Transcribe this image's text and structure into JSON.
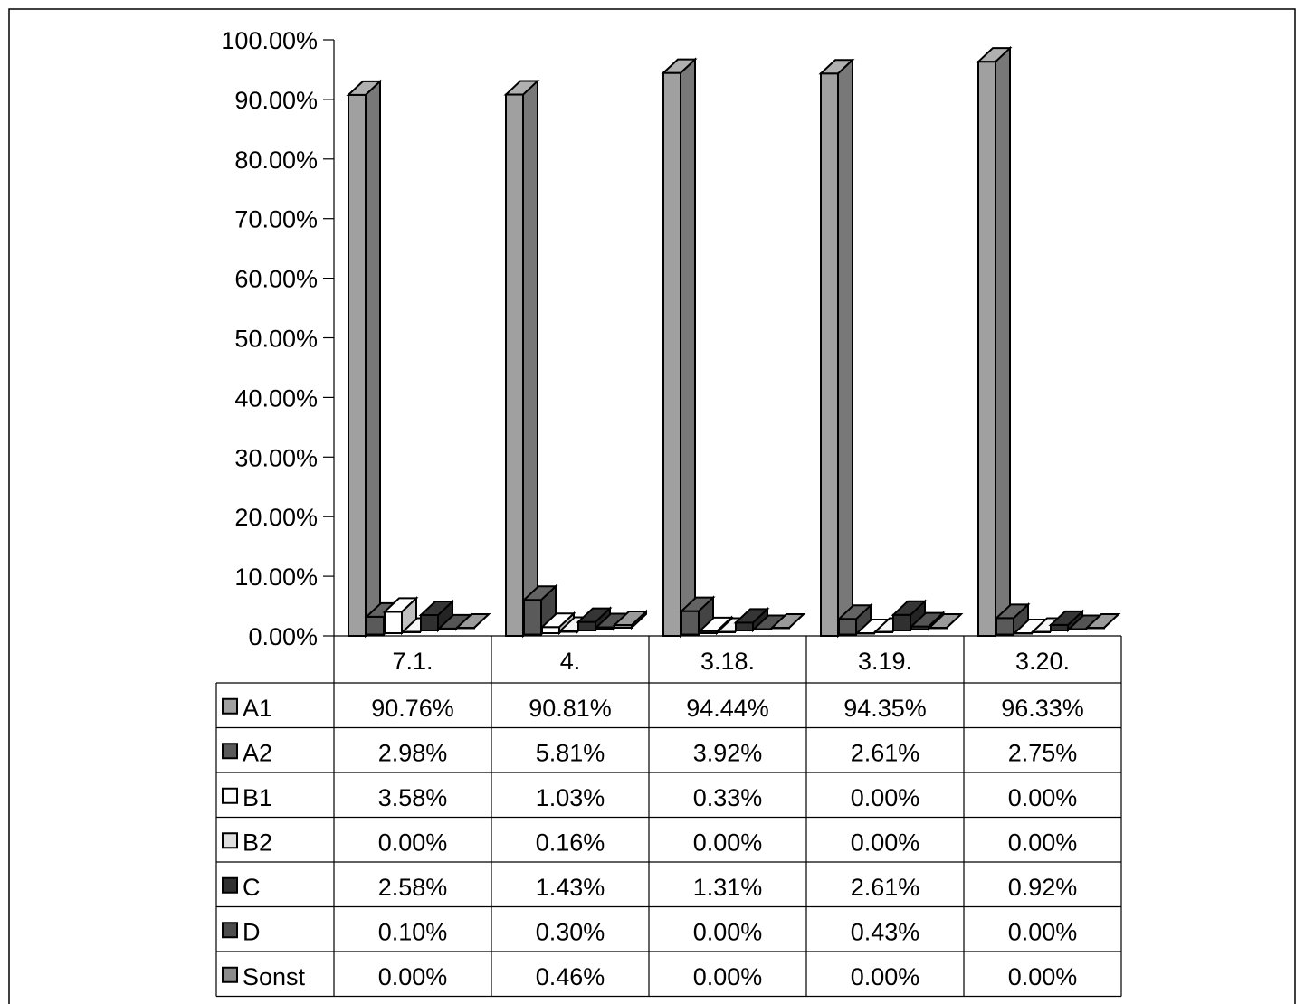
{
  "chart_data": {
    "type": "bar",
    "categories": [
      "7.1.",
      "4.",
      "3.18.",
      "3.19.",
      "3.20."
    ],
    "y_ticks": [
      "0.00%",
      "10.00%",
      "20.00%",
      "30.00%",
      "40.00%",
      "50.00%",
      "60.00%",
      "70.00%",
      "80.00%",
      "90.00%",
      "100.00%"
    ],
    "ylim": [
      0,
      100
    ],
    "legend": "data-table",
    "series": [
      {
        "name": "A1",
        "color": "#a0a0a0",
        "values": [
          90.76,
          90.81,
          94.44,
          94.35,
          96.33
        ],
        "labels": [
          "90.76%",
          "90.81%",
          "94.44%",
          "94.35%",
          "96.33%"
        ]
      },
      {
        "name": "A2",
        "color": "#5a5a5a",
        "values": [
          2.98,
          5.81,
          3.92,
          2.61,
          2.75
        ],
        "labels": [
          "2.98%",
          "5.81%",
          "3.92%",
          "2.61%",
          "2.75%"
        ]
      },
      {
        "name": "B1",
        "color": "#ffffff",
        "values": [
          3.58,
          1.03,
          0.33,
          0.0,
          0.0
        ],
        "labels": [
          "3.58%",
          "1.03%",
          "0.33%",
          "0.00%",
          "0.00%"
        ]
      },
      {
        "name": "B2",
        "color": "#e0e0e0",
        "values": [
          0.0,
          0.16,
          0.0,
          0.0,
          0.0
        ],
        "labels": [
          "0.00%",
          "0.16%",
          "0.00%",
          "0.00%",
          "0.00%"
        ]
      },
      {
        "name": "C",
        "color": "#303030",
        "values": [
          2.58,
          1.43,
          1.31,
          2.61,
          0.92
        ],
        "labels": [
          "2.58%",
          "1.43%",
          "1.31%",
          "2.61%",
          "0.92%"
        ]
      },
      {
        "name": "D",
        "color": "#4c4c4c",
        "values": [
          0.1,
          0.3,
          0.0,
          0.43,
          0.0
        ],
        "labels": [
          "0.10%",
          "0.30%",
          "0.00%",
          "0.43%",
          "0.00%"
        ]
      },
      {
        "name": "Sonst",
        "color": "#8c8c8c",
        "values": [
          0.0,
          0.46,
          0.0,
          0.0,
          0.0
        ],
        "labels": [
          "0.00%",
          "0.46%",
          "0.00%",
          "0.00%",
          "0.00%"
        ]
      }
    ]
  }
}
